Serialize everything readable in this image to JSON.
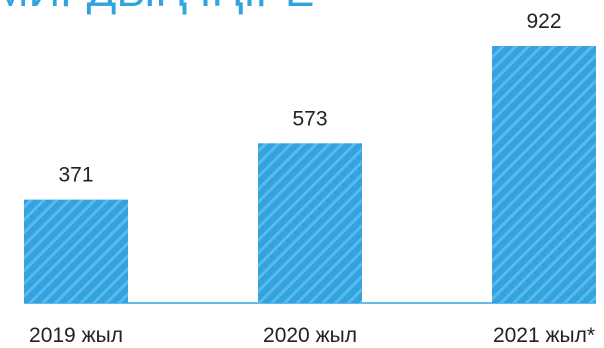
{
  "chart_data": {
    "type": "bar",
    "title": "МИРДЫҢ ІҢІРЕ",
    "categories": [
      "2019 жыл",
      "2020 жыл",
      "2021 жыл*"
    ],
    "values": [
      371,
      573,
      922
    ],
    "data_labels": [
      "371",
      "573",
      "922"
    ],
    "ylim": [
      0,
      1000
    ],
    "grid": false,
    "bar_color": "#33A3E0",
    "baseline_color": "#33A3E0",
    "text_color": "#222222"
  }
}
